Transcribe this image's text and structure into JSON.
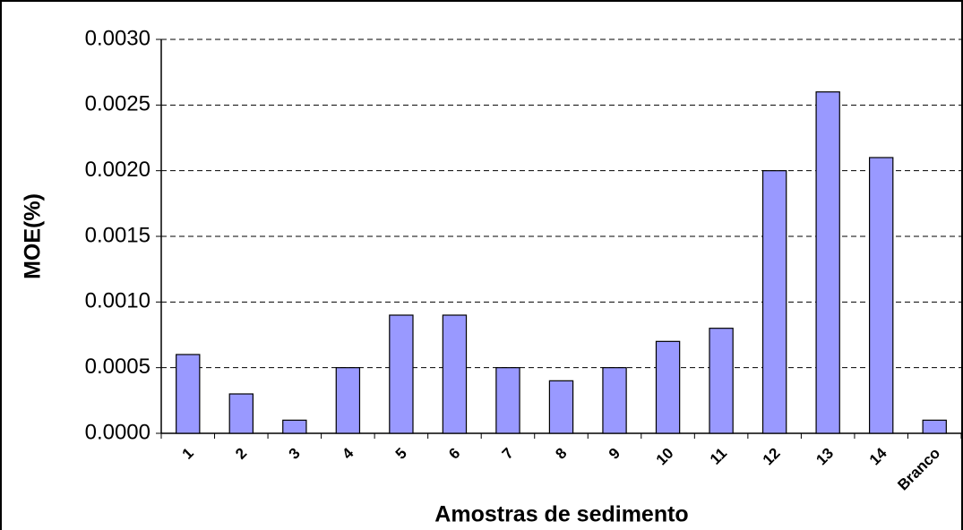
{
  "chart_data": {
    "type": "bar",
    "x_label": "Amostras de sedimento",
    "y_label": "MOE(%)",
    "categories": [
      "1",
      "2",
      "3",
      "4",
      "5",
      "6",
      "7",
      "8",
      "9",
      "10",
      "11",
      "12",
      "13",
      "14",
      "Branco"
    ],
    "values": [
      0.0006,
      0.0003,
      0.0001,
      0.0005,
      0.0009,
      0.0009,
      0.0005,
      0.0004,
      0.0005,
      0.0007,
      0.0008,
      0.002,
      0.0026,
      0.0021,
      0.0001
    ],
    "color": "#9999ff",
    "ylim": [
      0,
      0.003
    ],
    "yticks": [
      {
        "value": 0,
        "label": "0.0000"
      },
      {
        "value": 0.0005,
        "label": "0.0005"
      },
      {
        "value": 0.001,
        "label": "0.0010"
      },
      {
        "value": 0.0015,
        "label": "0.0015"
      },
      {
        "value": 0.002,
        "label": "0.0020"
      },
      {
        "value": 0.0025,
        "label": "0.0025"
      },
      {
        "value": 0.003,
        "label": "0.0030"
      }
    ],
    "grid": true
  }
}
